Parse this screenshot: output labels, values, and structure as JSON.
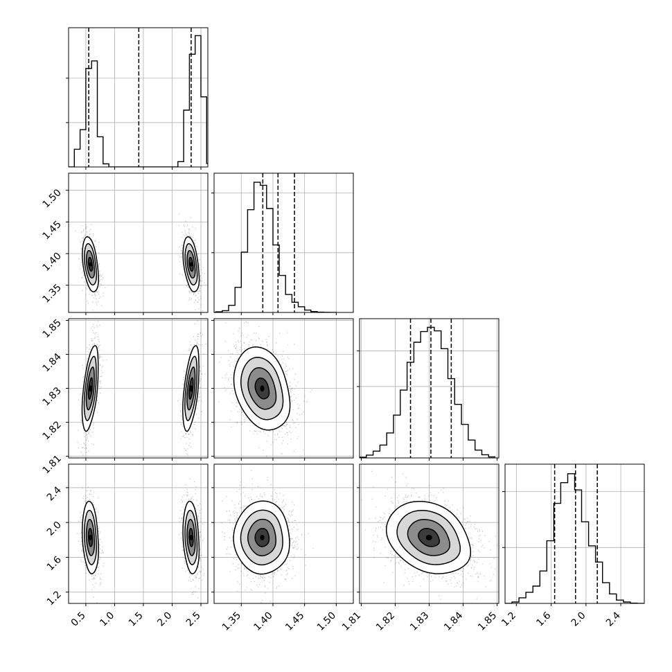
{
  "figure": {
    "type": "corner-plot"
  },
  "chart_data": {
    "type": "corner",
    "parameters": [
      {
        "index": 0,
        "range": [
          0.2,
          2.62
        ],
        "xticks": [
          0.5,
          1.0,
          1.5,
          2.0,
          2.5
        ],
        "xticklabels": [
          "0.5",
          "1.0",
          "1.5",
          "2.0",
          "2.5"
        ],
        "quantiles": [
          0.55,
          1.42,
          2.33
        ],
        "histogram": {
          "bin_edges": [
            0.0,
            0.1,
            0.2,
            0.3,
            0.4,
            0.5,
            0.6,
            0.7,
            0.8,
            0.9,
            1.0,
            1.1,
            1.2,
            1.3,
            1.4,
            1.5,
            1.6,
            1.7,
            1.8,
            1.9,
            2.0,
            2.1,
            2.2,
            2.3,
            2.4,
            2.5,
            2.6,
            2.7
          ],
          "counts": [
            0,
            0,
            0,
            200,
            420,
            1110,
            1195,
            340,
            35,
            0,
            0,
            0,
            0,
            0,
            0,
            0,
            0,
            0,
            0,
            0,
            0,
            60,
            640,
            1270,
            1480,
            790,
            40
          ],
          "ymax": 1480
        },
        "clusters": [
          {
            "mean": 0.58,
            "sd": 0.07
          },
          {
            "mean": 2.33,
            "sd": 0.07
          }
        ]
      },
      {
        "index": 1,
        "range": [
          1.307,
          1.527
        ],
        "xticks": [
          1.35,
          1.4,
          1.45,
          1.5
        ],
        "xticklabels": [
          "1.35",
          "1.40",
          "1.45",
          "1.50"
        ],
        "yticks": [
          1.35,
          1.4,
          1.45,
          1.5
        ],
        "yticklabels": [
          "1.35",
          "1.40",
          "1.45",
          "1.50"
        ],
        "quantiles": [
          1.384,
          1.408,
          1.434
        ],
        "histogram": {
          "bin_edges": [
            1.3,
            1.31,
            1.32,
            1.33,
            1.34,
            1.35,
            1.36,
            1.37,
            1.38,
            1.39,
            1.4,
            1.41,
            1.42,
            1.43,
            1.44,
            1.45,
            1.46,
            1.47,
            1.48,
            1.49,
            1.5
          ],
          "counts": [
            2,
            10,
            30,
            120,
            420,
            1010,
            1720,
            2180,
            2130,
            1740,
            1130,
            620,
            300,
            170,
            95,
            40,
            15,
            5,
            2,
            1
          ],
          "ymax": 2200
        }
      },
      {
        "index": 2,
        "range": [
          1.8095,
          1.8505
        ],
        "xticks": [
          1.81,
          1.82,
          1.83,
          1.84,
          1.85
        ],
        "xticklabels": [
          "1.81",
          "1.82",
          "1.83",
          "1.84",
          "1.85"
        ],
        "yticks": [
          1.81,
          1.82,
          1.83,
          1.84,
          1.85
        ],
        "yticklabels": [
          "1.81",
          "1.82",
          "1.83",
          "1.84",
          "1.85"
        ],
        "quantiles": [
          1.8245,
          1.8305,
          1.8365
        ],
        "histogram": {
          "bin_edges": [
            1.8095,
            1.8115,
            1.8135,
            1.8155,
            1.8175,
            1.8195,
            1.8215,
            1.8235,
            1.8255,
            1.8275,
            1.8295,
            1.8315,
            1.8335,
            1.8355,
            1.8375,
            1.8395,
            1.8415,
            1.8435,
            1.8455,
            1.8475,
            1.8495
          ],
          "counts": [
            10,
            40,
            95,
            180,
            350,
            600,
            950,
            1340,
            1620,
            1770,
            1830,
            1780,
            1530,
            1110,
            750,
            470,
            250,
            110,
            45,
            15
          ],
          "ymax": 1840
        }
      },
      {
        "index": 3,
        "range": [
          1.07,
          2.67
        ],
        "xticks": [
          1.2,
          1.6,
          2.0,
          2.4
        ],
        "xticklabels": [
          "1.2",
          "1.6",
          "2.0",
          "2.4"
        ],
        "yticks": [
          1.2,
          1.6,
          2.0,
          2.4
        ],
        "yticklabels": [
          "1.2",
          "1.6",
          "2.0",
          "2.4"
        ],
        "quantiles": [
          1.64,
          1.88,
          2.13
        ],
        "histogram": {
          "bin_edges": [
            1.07,
            1.15,
            1.23,
            1.31,
            1.39,
            1.47,
            1.55,
            1.63,
            1.71,
            1.79,
            1.87,
            1.95,
            2.03,
            2.11,
            2.19,
            2.27,
            2.35,
            2.43,
            2.51,
            2.59,
            2.67
          ],
          "counts": [
            1,
            25,
            100,
            200,
            310,
            580,
            1120,
            1790,
            2160,
            2320,
            2030,
            1460,
            1030,
            740,
            370,
            170,
            60,
            25,
            5,
            1
          ],
          "ymax": 2350
        }
      }
    ],
    "pair_correlations": {
      "1-0": -0.45,
      "2-0": 0.5,
      "3-0": -0.25,
      "2-1": -0.3,
      "3-1": -0.05,
      "3-2": -0.3
    },
    "grid": true,
    "contour_levels_sigma": [
      0.5,
      1.0,
      1.5,
      2.0
    ]
  }
}
